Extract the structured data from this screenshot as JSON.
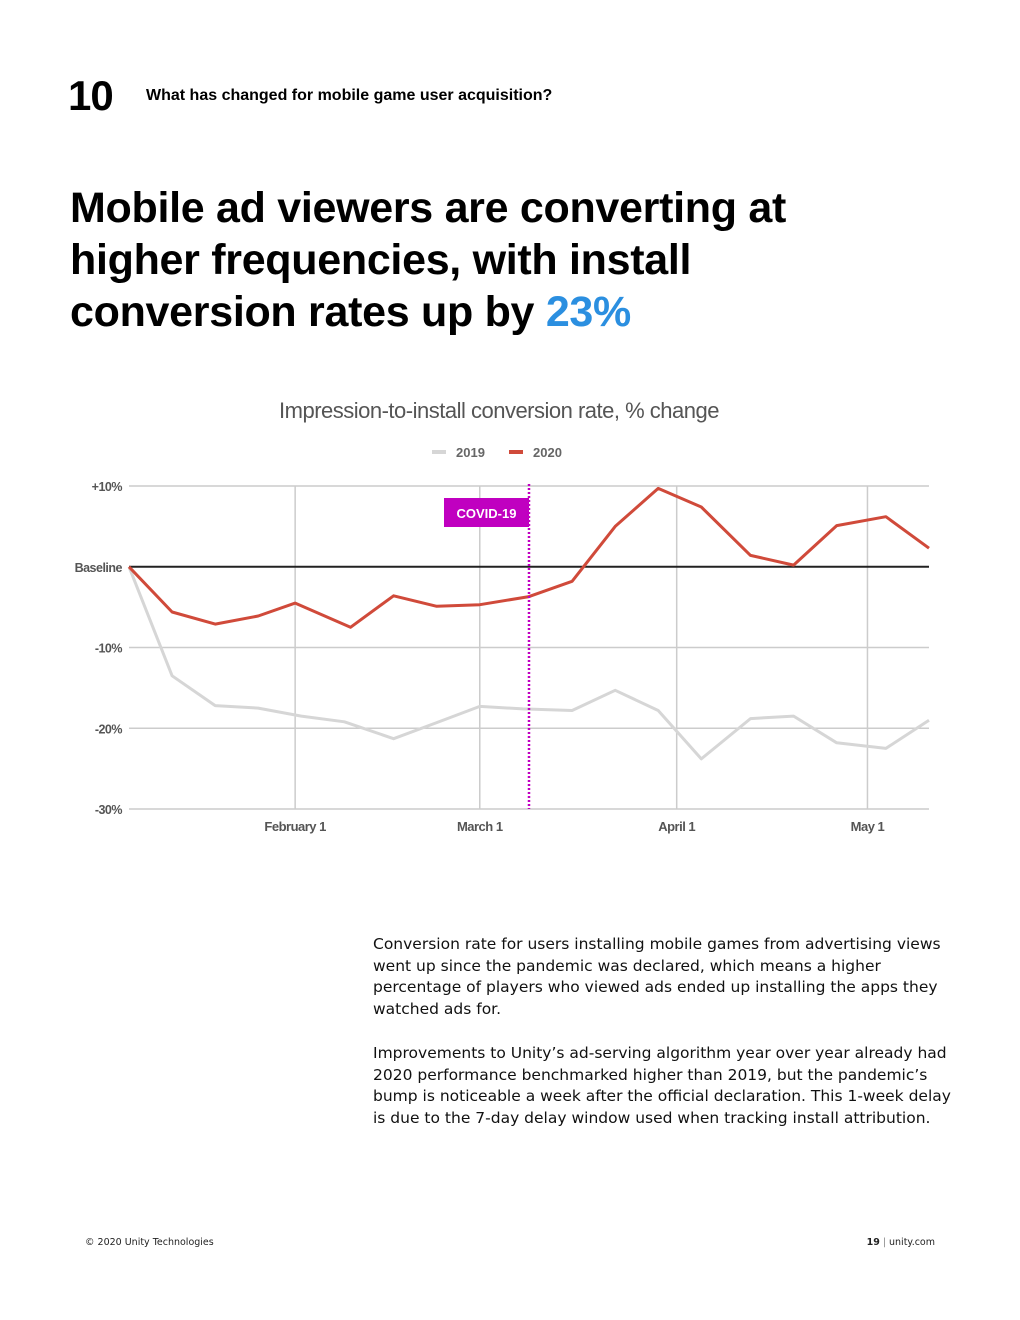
{
  "header": {
    "section_number": "10",
    "section_title": "What has changed for mobile game user acquisition?"
  },
  "headline": {
    "main": "Mobile ad viewers are converting at higher frequencies, with install conversion rates up by ",
    "highlight": "23%",
    "highlight_color": "#2b8fe0"
  },
  "chart_data": {
    "type": "line",
    "title": "Impression-to-install conversion rate, % change",
    "legend": [
      "2019",
      "2020"
    ],
    "colors": {
      "2019": "#d6d6d6",
      "2020": "#d04a3a",
      "baseline": "#222222",
      "covid": "#c000c0"
    },
    "y_ticks": [
      {
        "value": 10,
        "label": "+10%"
      },
      {
        "value": 0,
        "label": "Baseline"
      },
      {
        "value": -10,
        "label": "-10%"
      },
      {
        "value": -20,
        "label": "-20%"
      },
      {
        "value": -30,
        "label": "-30%"
      }
    ],
    "ylim": [
      -30,
      10
    ],
    "xlim": [
      0,
      130
    ],
    "x_ticks": [
      {
        "day": 27,
        "label": "February 1"
      },
      {
        "day": 57,
        "label": "March 1"
      },
      {
        "day": 89,
        "label": "April 1"
      },
      {
        "day": 120,
        "label": "May 1"
      }
    ],
    "annotation": {
      "label": "COVID-19",
      "day": 65
    },
    "series": [
      {
        "name": "2019",
        "x": [
          0,
          7,
          14,
          21,
          28,
          35,
          43,
          50,
          57,
          64,
          72,
          79,
          86,
          93,
          101,
          108,
          115,
          123,
          130
        ],
        "y": [
          0,
          -13.5,
          -17.2,
          -17.5,
          -18.5,
          -19.2,
          -21.3,
          -19.3,
          -17.3,
          -17.6,
          -17.8,
          -15.3,
          -17.8,
          -23.8,
          -18.8,
          -18.5,
          -21.8,
          -22.5,
          -19
        ]
      },
      {
        "name": "2020",
        "x": [
          0,
          7,
          14,
          21,
          27,
          36,
          43,
          50,
          57,
          65,
          72,
          79,
          86,
          93,
          101,
          108,
          115,
          123,
          130
        ],
        "y": [
          0,
          -5.6,
          -7.1,
          -6.1,
          -4.5,
          -7.5,
          -3.6,
          -4.9,
          -4.7,
          -3.7,
          -1.8,
          5,
          9.7,
          7.4,
          1.4,
          0.2,
          5.1,
          6.2,
          2.3
        ]
      }
    ]
  },
  "body": {
    "paragraph_1": "Conversion rate for users installing mobile games from advertising views went up since the pandemic was declared, which means a higher percentage of players who viewed ads ended up installing the apps they watched ads for.",
    "paragraph_2": "Improvements to Unity’s ad-serving algorithm year over year already had 2020 performance benchmarked higher than 2019, but the pandemic’s bump is noticeable a week after the official declaration. This 1-week delay is due to the 7-day delay window used when tracking install attribution."
  },
  "footer": {
    "copyright": "© 2020 Unity Technologies",
    "page_number": "19",
    "separator": "|",
    "site": "unity.com"
  }
}
